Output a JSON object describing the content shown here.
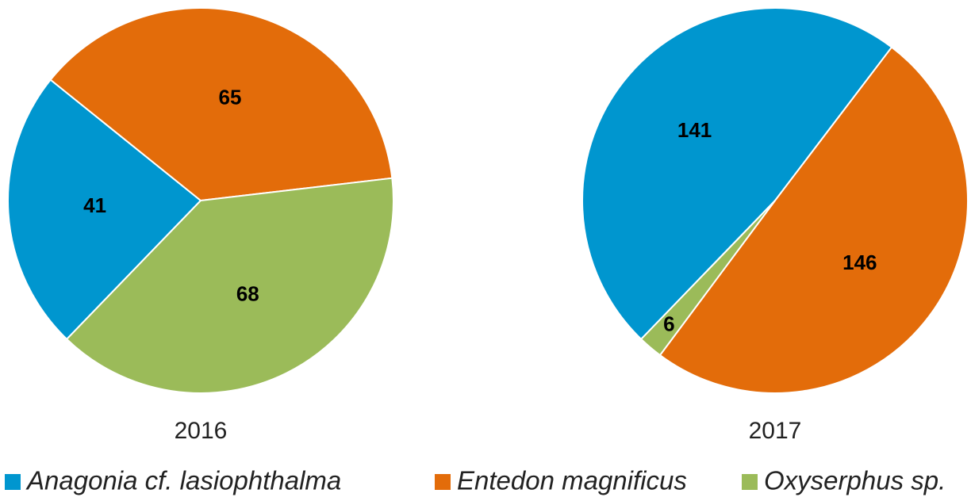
{
  "chart_data": [
    {
      "type": "pie",
      "title": "2016",
      "categories": [
        "Anagonia cf. lasiophthalma",
        "Entedon magnificus",
        "Oxyserphus sp."
      ],
      "values": [
        41,
        65,
        68
      ],
      "colors": [
        "#0096cf",
        "#e36c0a",
        "#9bbb59"
      ],
      "legend": "bottom"
    },
    {
      "type": "pie",
      "title": "2017",
      "categories": [
        "Anagonia cf. lasiophthalma",
        "Entedon magnificus",
        "Oxyserphus sp."
      ],
      "values": [
        141,
        146,
        6
      ],
      "colors": [
        "#0096cf",
        "#e36c0a",
        "#9bbb59"
      ],
      "legend": "bottom"
    }
  ]
}
